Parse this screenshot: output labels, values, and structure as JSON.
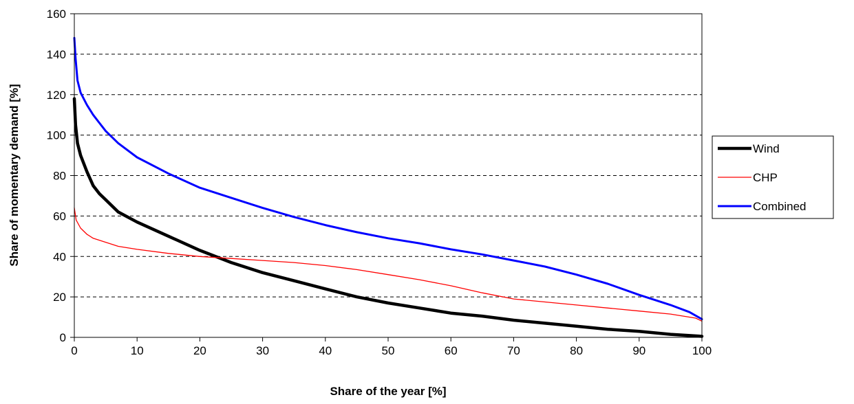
{
  "chart_data": {
    "type": "line",
    "title": "",
    "xlabel": "Share of the year [%]",
    "ylabel": "Share of momentary demand [%]",
    "xlim": [
      0,
      100
    ],
    "ylim": [
      0,
      160
    ],
    "x_ticks": [
      "0",
      "10",
      "20",
      "30",
      "40",
      "50",
      "60",
      "70",
      "80",
      "90",
      "100"
    ],
    "y_ticks": [
      "0",
      "20",
      "40",
      "60",
      "80",
      "100",
      "120",
      "140",
      "160"
    ],
    "grid": "horizontal dashed",
    "legend_position": "right",
    "series": [
      {
        "name": "Wind",
        "color": "#000000",
        "points": [
          [
            0,
            118
          ],
          [
            0.2,
            105
          ],
          [
            0.5,
            96
          ],
          [
            1,
            90
          ],
          [
            2,
            82
          ],
          [
            3,
            75
          ],
          [
            4,
            71
          ],
          [
            5,
            68
          ],
          [
            7,
            62
          ],
          [
            10,
            57
          ],
          [
            15,
            50
          ],
          [
            20,
            43
          ],
          [
            25,
            37
          ],
          [
            30,
            32
          ],
          [
            35,
            28
          ],
          [
            40,
            24
          ],
          [
            45,
            20
          ],
          [
            50,
            17
          ],
          [
            55,
            14.5
          ],
          [
            60,
            12
          ],
          [
            65,
            10.5
          ],
          [
            70,
            8.5
          ],
          [
            75,
            7
          ],
          [
            80,
            5.5
          ],
          [
            85,
            4
          ],
          [
            90,
            3
          ],
          [
            95,
            1.5
          ],
          [
            100,
            0.5
          ]
        ]
      },
      {
        "name": "CHP",
        "color": "#ff0000",
        "points": [
          [
            0,
            64
          ],
          [
            0.3,
            58
          ],
          [
            1,
            54
          ],
          [
            2,
            51
          ],
          [
            3,
            49
          ],
          [
            5,
            47
          ],
          [
            7,
            45
          ],
          [
            10,
            43.5
          ],
          [
            15,
            41.5
          ],
          [
            20,
            40
          ],
          [
            25,
            39
          ],
          [
            30,
            38
          ],
          [
            35,
            37
          ],
          [
            40,
            35.5
          ],
          [
            45,
            33.5
          ],
          [
            50,
            31
          ],
          [
            55,
            28.5
          ],
          [
            60,
            25.5
          ],
          [
            65,
            22
          ],
          [
            70,
            19
          ],
          [
            75,
            17.5
          ],
          [
            80,
            16
          ],
          [
            85,
            14.5
          ],
          [
            90,
            13
          ],
          [
            95,
            11.5
          ],
          [
            99,
            9.5
          ],
          [
            100,
            8
          ]
        ]
      },
      {
        "name": "Combined",
        "color": "#0000ff",
        "points": [
          [
            0,
            148
          ],
          [
            0.2,
            138
          ],
          [
            0.5,
            127
          ],
          [
            1,
            121
          ],
          [
            2,
            115
          ],
          [
            3,
            110
          ],
          [
            4,
            106
          ],
          [
            5,
            102
          ],
          [
            7,
            96
          ],
          [
            10,
            89
          ],
          [
            15,
            81
          ],
          [
            20,
            74
          ],
          [
            25,
            69
          ],
          [
            30,
            64
          ],
          [
            35,
            59.5
          ],
          [
            40,
            55.5
          ],
          [
            45,
            52
          ],
          [
            50,
            49
          ],
          [
            55,
            46.5
          ],
          [
            60,
            43.5
          ],
          [
            65,
            41
          ],
          [
            70,
            38
          ],
          [
            75,
            35
          ],
          [
            80,
            31
          ],
          [
            85,
            26.5
          ],
          [
            90,
            21
          ],
          [
            95,
            16
          ],
          [
            98,
            12.5
          ],
          [
            100,
            9
          ]
        ]
      }
    ]
  }
}
